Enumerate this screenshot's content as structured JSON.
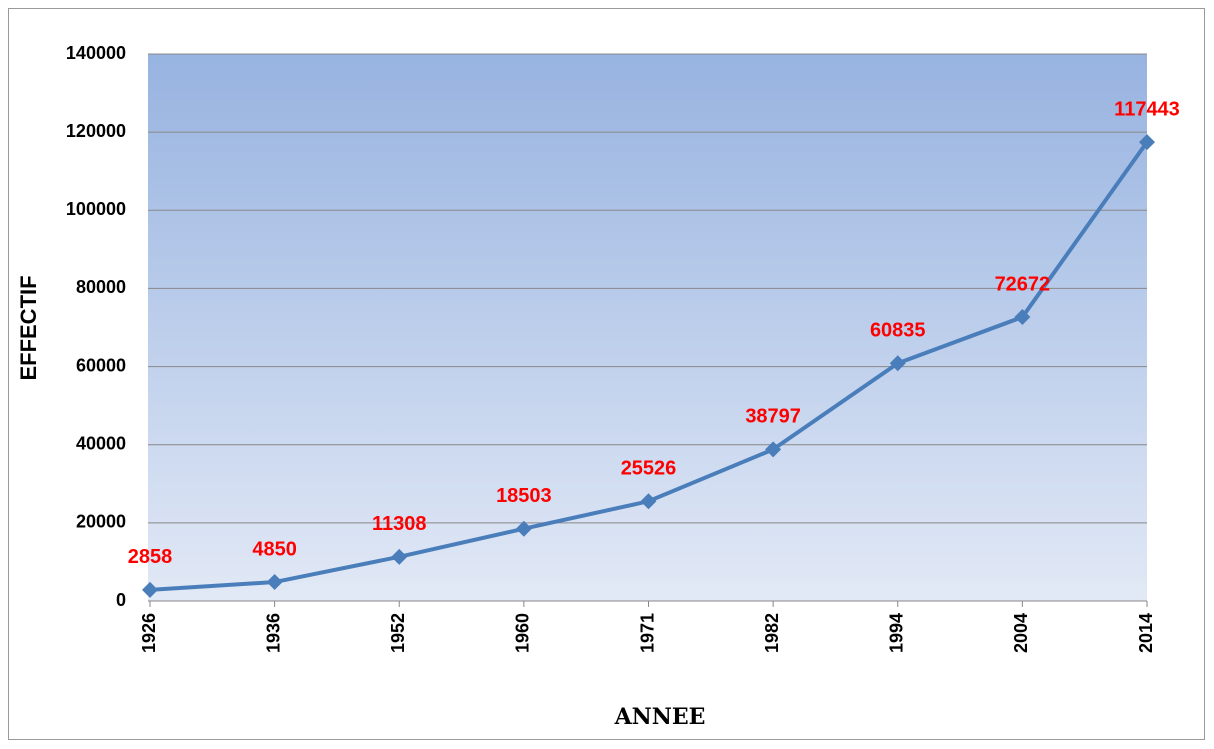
{
  "chart_data": {
    "type": "line",
    "categories": [
      "1926",
      "1936",
      "1952",
      "1960",
      "1971",
      "1982",
      "1994",
      "2004",
      "2014"
    ],
    "series": [
      {
        "name": "EFFECTIF",
        "color": "#4a7ebb",
        "values": [
          2858,
          4850,
          11308,
          18503,
          25526,
          38797,
          60835,
          72672,
          117443
        ]
      }
    ],
    "x_label": "ANNEE",
    "y_label": "EFFECTIF",
    "ylim": [
      0,
      140000
    ],
    "yticks": [
      0,
      20000,
      40000,
      60000,
      80000,
      100000,
      120000,
      140000
    ],
    "grid": true,
    "label_color": "#ff0000"
  }
}
